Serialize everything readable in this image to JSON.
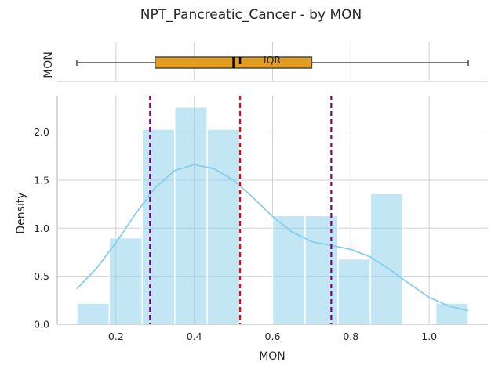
{
  "chart_data": {
    "type": "bar",
    "title": "NPT_Pancreatic_Cancer - by MON",
    "xlabel": "MON",
    "ylabel": "Density",
    "xlim": [
      0.05,
      1.15
    ],
    "ylim": [
      0,
      2.38
    ],
    "x_ticks": [
      0.2,
      0.4,
      0.6,
      0.8,
      1.0
    ],
    "x_tick_labels": [
      "0.2",
      "0.4",
      "0.6",
      "0.8",
      "1.0"
    ],
    "y_ticks": [
      0.0,
      0.5,
      1.0,
      1.5,
      2.0
    ],
    "y_tick_labels": [
      "0.0",
      "0.5",
      "1.0",
      "1.5",
      "2.0"
    ],
    "grid": true,
    "histogram": {
      "color": "#87CEEB",
      "bins": [
        {
          "x0": 0.1,
          "x1": 0.183,
          "density": 0.22
        },
        {
          "x0": 0.183,
          "x1": 0.267,
          "density": 0.9
        },
        {
          "x0": 0.267,
          "x1": 0.35,
          "density": 2.03
        },
        {
          "x0": 0.35,
          "x1": 0.433,
          "density": 2.26
        },
        {
          "x0": 0.433,
          "x1": 0.517,
          "density": 2.03
        },
        {
          "x0": 0.517,
          "x1": 0.6,
          "density": 0.0
        },
        {
          "x0": 0.6,
          "x1": 0.683,
          "density": 1.13
        },
        {
          "x0": 0.683,
          "x1": 0.767,
          "density": 1.13
        },
        {
          "x0": 0.767,
          "x1": 0.85,
          "density": 0.68
        },
        {
          "x0": 0.85,
          "x1": 0.933,
          "density": 1.36
        },
        {
          "x0": 0.933,
          "x1": 1.017,
          "density": 0.0
        },
        {
          "x0": 1.017,
          "x1": 1.1,
          "density": 0.22
        }
      ]
    },
    "kde": {
      "color": "#87CEEB",
      "x": [
        0.1,
        0.15,
        0.2,
        0.25,
        0.3,
        0.35,
        0.4,
        0.45,
        0.5,
        0.55,
        0.6,
        0.65,
        0.7,
        0.75,
        0.8,
        0.85,
        0.9,
        0.95,
        1.0,
        1.05,
        1.1
      ],
      "y": [
        0.37,
        0.58,
        0.85,
        1.15,
        1.42,
        1.6,
        1.66,
        1.62,
        1.5,
        1.32,
        1.12,
        0.96,
        0.86,
        0.82,
        0.78,
        0.7,
        0.57,
        0.42,
        0.28,
        0.19,
        0.14
      ]
    },
    "vlines": [
      {
        "x": 0.287,
        "color": "#800080",
        "style": "dashed"
      },
      {
        "x": 0.517,
        "color": "#ff0000",
        "style": "dashed"
      },
      {
        "x": 0.75,
        "color": "#800080",
        "style": "dashed"
      }
    ],
    "boxplot": {
      "label": "MON",
      "annotation": "IQR",
      "min": 0.1,
      "q1": 0.3,
      "median": 0.5,
      "mean": 0.517,
      "q3": 0.7,
      "max": 1.1,
      "color": "#E39E21"
    }
  }
}
